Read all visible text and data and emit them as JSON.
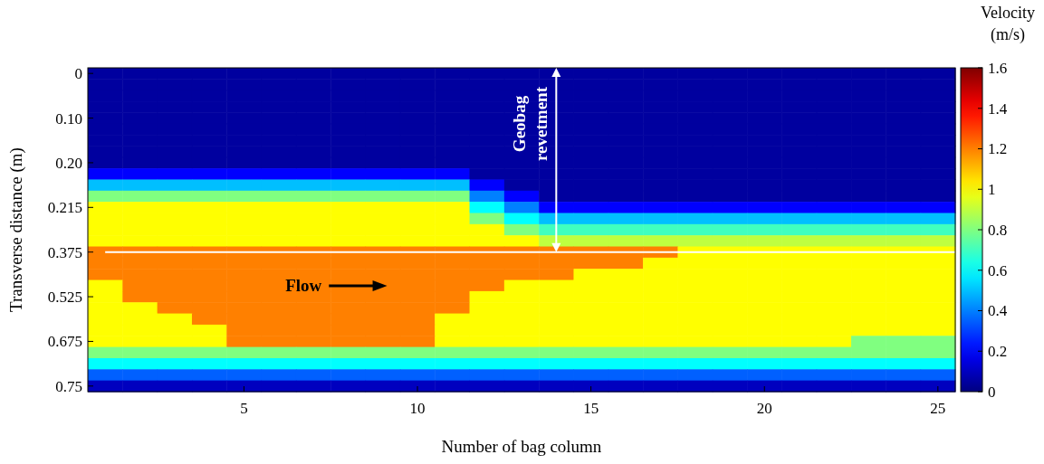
{
  "chart_data": {
    "type": "heatmap",
    "xlabel": "Number of bag column",
    "ylabel": "Transverse distance (m)",
    "clabel": "Velocity (m/s)",
    "categories": [
      null,
      null,
      null,
      null,
      "5",
      null,
      null,
      null,
      null,
      "10",
      null,
      null,
      null,
      null,
      "15",
      null,
      null,
      null,
      null,
      "20",
      null,
      null,
      null,
      null,
      "25"
    ],
    "y_categories": [
      "0",
      null,
      null,
      null,
      "0.10",
      null,
      null,
      null,
      "0.20",
      null,
      null,
      null,
      "0.215",
      null,
      null,
      null,
      "0.375",
      null,
      null,
      null,
      "0.525",
      null,
      null,
      null,
      "0.675",
      null,
      null,
      null,
      "0.75"
    ],
    "cells": [
      [
        0.05,
        0.05,
        0.05,
        0.05,
        0.05,
        0.05,
        0.05,
        0.05,
        0.05,
        0.05,
        0.05,
        0.05,
        0.05,
        0.05,
        0.05,
        0.05,
        0.05,
        0.05,
        0.05,
        0.05,
        0.05,
        0.05,
        0.05,
        0.05,
        0.05
      ],
      [
        0.05,
        0.05,
        0.05,
        0.05,
        0.05,
        0.05,
        0.05,
        0.05,
        0.05,
        0.05,
        0.05,
        0.05,
        0.05,
        0.05,
        0.05,
        0.05,
        0.05,
        0.05,
        0.05,
        0.05,
        0.05,
        0.05,
        0.05,
        0.05,
        0.05
      ],
      [
        0.05,
        0.05,
        0.05,
        0.05,
        0.05,
        0.05,
        0.05,
        0.05,
        0.05,
        0.05,
        0.05,
        0.05,
        0.05,
        0.05,
        0.05,
        0.05,
        0.05,
        0.05,
        0.05,
        0.05,
        0.05,
        0.05,
        0.05,
        0.05,
        0.05
      ],
      [
        0.05,
        0.05,
        0.05,
        0.05,
        0.05,
        0.05,
        0.05,
        0.05,
        0.05,
        0.05,
        0.05,
        0.05,
        0.05,
        0.05,
        0.05,
        0.05,
        0.05,
        0.05,
        0.05,
        0.05,
        0.05,
        0.05,
        0.05,
        0.05,
        0.05
      ],
      [
        0.05,
        0.05,
        0.05,
        0.05,
        0.05,
        0.05,
        0.05,
        0.05,
        0.05,
        0.05,
        0.05,
        0.05,
        0.05,
        0.05,
        0.05,
        0.05,
        0.05,
        0.05,
        0.05,
        0.05,
        0.05,
        0.05,
        0.05,
        0.05,
        0.05
      ],
      [
        0.05,
        0.05,
        0.05,
        0.05,
        0.05,
        0.05,
        0.05,
        0.05,
        0.05,
        0.05,
        0.05,
        0.05,
        0.05,
        0.05,
        0.05,
        0.05,
        0.05,
        0.05,
        0.05,
        0.05,
        0.05,
        0.05,
        0.05,
        0.05,
        0.05
      ],
      [
        0.05,
        0.05,
        0.05,
        0.05,
        0.05,
        0.05,
        0.05,
        0.05,
        0.05,
        0.05,
        0.05,
        0.05,
        0.05,
        0.05,
        0.05,
        0.05,
        0.05,
        0.05,
        0.05,
        0.05,
        0.05,
        0.05,
        0.05,
        0.05,
        0.05
      ],
      [
        0.05,
        0.05,
        0.05,
        0.05,
        0.05,
        0.05,
        0.05,
        0.05,
        0.05,
        0.05,
        0.05,
        0.05,
        0.05,
        0.05,
        0.05,
        0.05,
        0.05,
        0.05,
        0.05,
        0.05,
        0.05,
        0.05,
        0.05,
        0.05,
        0.05
      ],
      [
        0.05,
        0.05,
        0.05,
        0.05,
        0.05,
        0.05,
        0.05,
        0.05,
        0.05,
        0.05,
        0.05,
        0.05,
        0.05,
        0.05,
        0.05,
        0.05,
        0.05,
        0.05,
        0.05,
        0.05,
        0.05,
        0.05,
        0.05,
        0.05,
        0.05
      ],
      [
        0.2,
        0.2,
        0.2,
        0.2,
        0.2,
        0.2,
        0.2,
        0.2,
        0.2,
        0.2,
        0.2,
        0.05,
        0.05,
        0.05,
        0.05,
        0.05,
        0.05,
        0.05,
        0.05,
        0.05,
        0.05,
        0.05,
        0.05,
        0.05,
        0.05
      ],
      [
        0.5,
        0.5,
        0.5,
        0.5,
        0.5,
        0.5,
        0.5,
        0.5,
        0.5,
        0.5,
        0.5,
        0.2,
        0.05,
        0.05,
        0.05,
        0.05,
        0.05,
        0.05,
        0.05,
        0.05,
        0.05,
        0.05,
        0.05,
        0.05,
        0.05
      ],
      [
        0.8,
        0.8,
        0.8,
        0.8,
        0.8,
        0.8,
        0.8,
        0.8,
        0.8,
        0.8,
        0.8,
        0.4,
        0.2,
        0.05,
        0.05,
        0.05,
        0.05,
        0.05,
        0.05,
        0.05,
        0.05,
        0.05,
        0.05,
        0.05,
        0.05
      ],
      [
        1,
        1,
        1,
        1,
        1,
        1,
        1,
        1,
        1,
        1,
        1,
        0.6,
        0.4,
        0.2,
        0.2,
        0.2,
        0.2,
        0.2,
        0.2,
        0.2,
        0.2,
        0.2,
        0.2,
        0.2,
        0.2
      ],
      [
        1,
        1,
        1,
        1,
        1,
        1,
        1,
        1,
        1,
        1,
        1,
        0.8,
        0.6,
        0.5,
        0.5,
        0.5,
        0.5,
        0.5,
        0.5,
        0.5,
        0.5,
        0.5,
        0.5,
        0.5,
        0.5
      ],
      [
        1,
        1,
        1,
        1,
        1,
        1,
        1,
        1,
        1,
        1,
        1,
        1,
        0.8,
        0.7,
        0.7,
        0.7,
        0.7,
        0.7,
        0.7,
        0.7,
        0.7,
        0.7,
        0.7,
        0.7,
        0.7
      ],
      [
        1,
        1,
        1,
        1,
        1,
        1,
        1,
        1,
        1,
        1,
        1,
        1,
        1,
        0.9,
        0.9,
        0.9,
        0.9,
        0.9,
        0.9,
        0.9,
        0.9,
        0.9,
        0.9,
        0.9,
        0.9
      ],
      [
        1.2,
        1.2,
        1.2,
        1.2,
        1.2,
        1.2,
        1.2,
        1.2,
        1.2,
        1.2,
        1.2,
        1.2,
        1.2,
        1.2,
        1.2,
        1.2,
        1.2,
        1,
        1,
        1,
        1,
        1,
        1,
        1,
        1
      ],
      [
        1.2,
        1.2,
        1.2,
        1.2,
        1.2,
        1.2,
        1.2,
        1.2,
        1.2,
        1.2,
        1.2,
        1.2,
        1.2,
        1.2,
        1.2,
        1.2,
        1,
        1,
        1,
        1,
        1,
        1,
        1,
        1,
        1
      ],
      [
        1.2,
        1.2,
        1.2,
        1.2,
        1.2,
        1.2,
        1.2,
        1.2,
        1.2,
        1.2,
        1.2,
        1.2,
        1.2,
        1.2,
        1,
        1,
        1,
        1,
        1,
        1,
        1,
        1,
        1,
        1,
        1
      ],
      [
        1,
        1.2,
        1.2,
        1.2,
        1.2,
        1.2,
        1.2,
        1.2,
        1.2,
        1.2,
        1.2,
        1.2,
        1,
        1,
        1,
        1,
        1,
        1,
        1,
        1,
        1,
        1,
        1,
        1,
        1
      ],
      [
        1,
        1.2,
        1.2,
        1.2,
        1.2,
        1.2,
        1.2,
        1.2,
        1.2,
        1.2,
        1.2,
        1,
        1,
        1,
        1,
        1,
        1,
        1,
        1,
        1,
        1,
        1,
        1,
        1,
        1
      ],
      [
        1,
        1,
        1.2,
        1.2,
        1.2,
        1.2,
        1.2,
        1.2,
        1.2,
        1.2,
        1.2,
        1,
        1,
        1,
        1,
        1,
        1,
        1,
        1,
        1,
        1,
        1,
        1,
        1,
        1
      ],
      [
        1,
        1,
        1,
        1.2,
        1.2,
        1.2,
        1.2,
        1.2,
        1.2,
        1.2,
        1,
        1,
        1,
        1,
        1,
        1,
        1,
        1,
        1,
        1,
        1,
        1,
        1,
        1,
        1
      ],
      [
        1,
        1,
        1,
        1,
        1.2,
        1.2,
        1.2,
        1.2,
        1.2,
        1.2,
        1,
        1,
        1,
        1,
        1,
        1,
        1,
        1,
        1,
        1,
        1,
        1,
        1,
        1,
        1
      ],
      [
        1,
        1,
        1,
        1,
        1.2,
        1.2,
        1.2,
        1.2,
        1.2,
        1.2,
        1,
        1,
        1,
        1,
        1,
        1,
        1,
        1,
        1,
        1,
        1,
        1,
        0.8,
        0.8,
        0.8
      ],
      [
        0.8,
        0.8,
        0.8,
        0.8,
        0.8,
        0.8,
        0.8,
        0.8,
        0.8,
        0.8,
        0.8,
        0.8,
        0.8,
        0.8,
        0.8,
        0.8,
        0.8,
        0.8,
        0.8,
        0.8,
        0.8,
        0.8,
        0.8,
        0.8,
        0.8
      ],
      [
        0.6,
        0.6,
        0.6,
        0.6,
        0.6,
        0.6,
        0.6,
        0.6,
        0.6,
        0.6,
        0.6,
        0.6,
        0.6,
        0.6,
        0.6,
        0.6,
        0.6,
        0.6,
        0.6,
        0.6,
        0.6,
        0.6,
        0.6,
        0.6,
        0.6
      ],
      [
        0.35,
        0.35,
        0.35,
        0.35,
        0.35,
        0.35,
        0.35,
        0.35,
        0.35,
        0.35,
        0.35,
        0.35,
        0.35,
        0.35,
        0.35,
        0.35,
        0.35,
        0.35,
        0.35,
        0.35,
        0.35,
        0.35,
        0.35,
        0.35,
        0.35
      ],
      [
        0.1,
        0.1,
        0.1,
        0.1,
        0.1,
        0.1,
        0.1,
        0.1,
        0.1,
        0.1,
        0.1,
        0.1,
        0.1,
        0.1,
        0.1,
        0.1,
        0.1,
        0.1,
        0.1,
        0.1,
        0.1,
        0.1,
        0.1,
        0.1,
        0.1
      ]
    ],
    "clim": [
      0,
      1.6
    ],
    "cticks": [
      0,
      0.2,
      0.4,
      0.6,
      0.8,
      1,
      1.2,
      1.4,
      1.6
    ],
    "ref_lines": [
      {
        "axis": "y",
        "value": "0.375",
        "color": "#ffffff"
      }
    ],
    "annotations": [
      "Geobag revetment",
      "Flow"
    ]
  }
}
